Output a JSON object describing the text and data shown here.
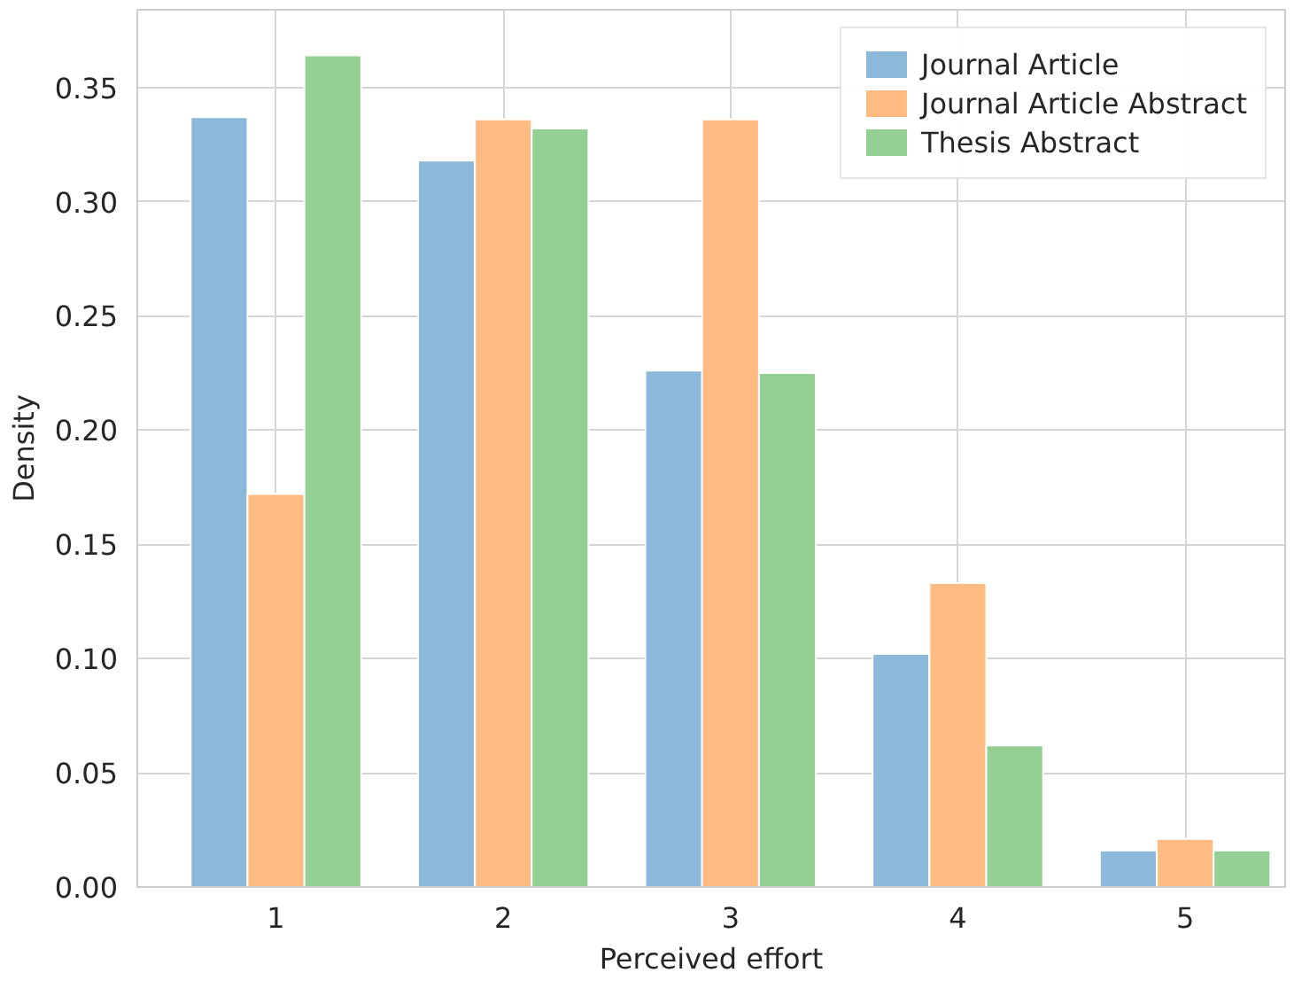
{
  "chart_data": {
    "type": "bar",
    "xlabel": "Perceived effort",
    "ylabel": "Density",
    "x": [
      1,
      2,
      3,
      4,
      5
    ],
    "series": [
      {
        "name": "Journal Article",
        "color": "#8cb8d9",
        "values": [
          0.337,
          0.318,
          0.226,
          0.102,
          0.016
        ]
      },
      {
        "name": "Journal Article Abstract",
        "color": "#ffbb82",
        "values": [
          0.172,
          0.336,
          0.336,
          0.133,
          0.021
        ]
      },
      {
        "name": "Thesis Abstract",
        "color": "#94cf93",
        "values": [
          0.364,
          0.332,
          0.225,
          0.062,
          0.016
        ]
      }
    ],
    "xlim": [
      0.39,
      5.44
    ],
    "xticks": [
      1,
      2,
      3,
      4,
      5
    ],
    "ylim": [
      0,
      0.384
    ],
    "yticks": [
      {
        "value": 0,
        "label": "0.00"
      },
      {
        "value": 0.05,
        "label": "0.05"
      },
      {
        "value": 0.1,
        "label": "0.10"
      },
      {
        "value": 0.15,
        "label": "0.15"
      },
      {
        "value": 0.2,
        "label": "0.20"
      },
      {
        "value": 0.25,
        "label": "0.25"
      },
      {
        "value": 0.3,
        "label": "0.30"
      },
      {
        "value": 0.35,
        "label": "0.35"
      }
    ],
    "grid": true,
    "legend": "top right"
  }
}
